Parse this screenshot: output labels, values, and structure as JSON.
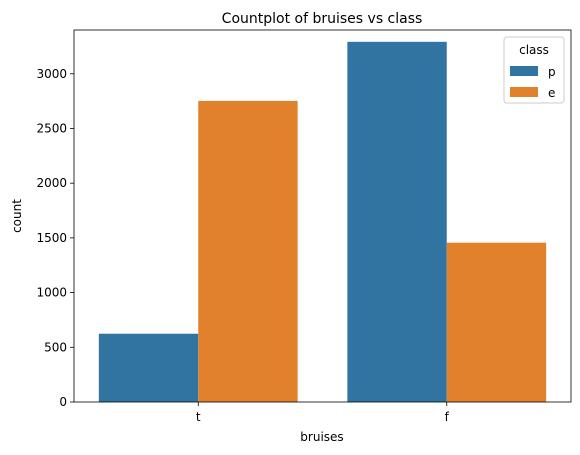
{
  "chart_data": {
    "type": "bar",
    "title": "Countplot of bruises vs class",
    "xlabel": "bruises",
    "ylabel": "count",
    "categories": [
      "t",
      "f"
    ],
    "series": [
      {
        "name": "p",
        "values": [
          624,
          3292
        ],
        "color": "#3274a1"
      },
      {
        "name": "e",
        "values": [
          2752,
          1456
        ],
        "color": "#e1812c"
      }
    ],
    "ylim": [
      0,
      3400
    ],
    "yticks": [
      0,
      500,
      1000,
      1500,
      2000,
      2500,
      3000
    ],
    "legend": {
      "title": "class",
      "placement": "top-right"
    },
    "grid": false
  }
}
